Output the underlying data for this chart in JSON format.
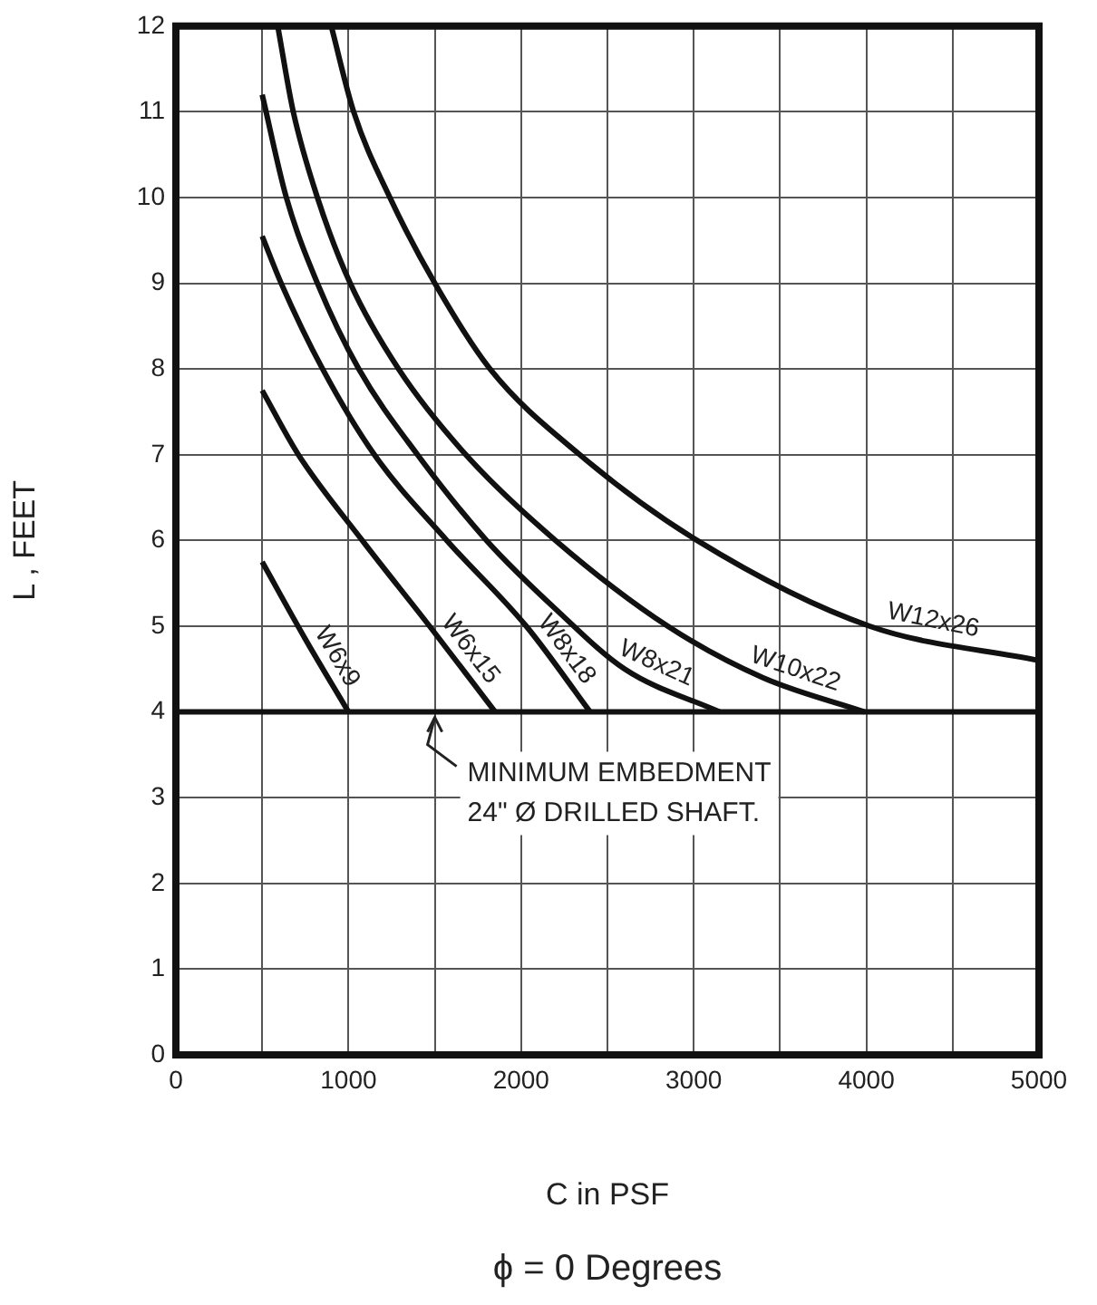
{
  "chart_data": {
    "type": "line",
    "xlabel": "C in PSF",
    "ylabel": "L , FEET",
    "xlim": [
      0,
      5000
    ],
    "ylim": [
      0,
      12
    ],
    "xticks": [
      0,
      {
        "value": 500,
        "label": null
      },
      1000,
      {
        "value": 1500,
        "label": null
      },
      2000,
      {
        "value": 2500,
        "label": null
      },
      3000,
      {
        "value": 3500,
        "label": null
      },
      4000,
      {
        "value": 4500,
        "label": null
      },
      5000
    ],
    "yticks": [
      0,
      1,
      2,
      3,
      4,
      5,
      6,
      7,
      8,
      9,
      10,
      11,
      12
    ],
    "grid": true,
    "legend": false,
    "marker": "none",
    "line_style": "solid",
    "series": [
      {
        "name": "W6x9",
        "color": "#111111",
        "x": [
          500,
          750,
          1000
        ],
        "values": [
          5.75,
          4.85,
          4
        ]
      },
      {
        "name": "W6x15",
        "color": "#111111",
        "x": [
          500,
          710,
          1080,
          1470,
          1850
        ],
        "values": [
          7.75,
          7,
          6,
          5,
          4
        ]
      },
      {
        "name": "W8x18",
        "color": "#111111",
        "x": [
          500,
          610,
          850,
          1150,
          1570,
          2030,
          2400
        ],
        "values": [
          9.55,
          9,
          8,
          7,
          6,
          5,
          4
        ]
      },
      {
        "name": "W8x21",
        "color": "#111111",
        "x": [
          500,
          640,
          820,
          1060,
          1400,
          1800,
          2200,
          2600,
          3150
        ],
        "values": [
          11.2,
          10,
          9,
          8,
          7,
          6,
          5.2,
          4.5,
          4
        ]
      },
      {
        "name": "W10x22",
        "color": "#111111",
        "x": [
          590,
          680,
          820,
          1010,
          1290,
          1680,
          2200,
          2850,
          3400,
          3990
        ],
        "values": [
          12,
          11,
          10,
          9,
          8,
          7,
          6,
          5,
          4.4,
          4
        ]
      },
      {
        "name": "W12x26",
        "color": "#111111",
        "x": [
          900,
          1030,
          1240,
          1500,
          1820,
          2340,
          3020,
          4020,
          5000
        ],
        "values": [
          12,
          11,
          10,
          9,
          8,
          7,
          6,
          5,
          4.6
        ]
      }
    ],
    "ref_lines": [
      {
        "axis": "y",
        "value": 4,
        "color": "#111111"
      }
    ],
    "annotations": [
      {
        "text": "MINIMUM EMBEDMENT\n24\" Ø DRILLED SHAFT.",
        "x": 1500,
        "y": 4
      },
      "ϕ = 0 Degrees"
    ]
  }
}
